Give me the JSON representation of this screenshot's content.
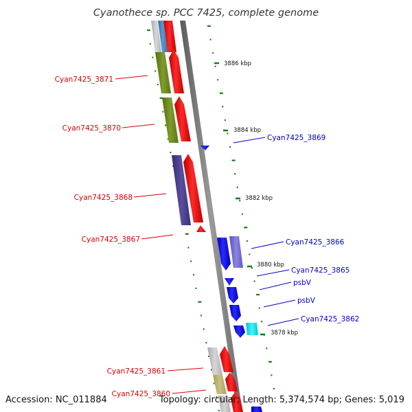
{
  "title": "Cyanothece sp. PCC 7425, complete genome",
  "footer": {
    "accession": "Accession: NC_011884",
    "summary": "Topology: circular; Length: 5,374,574 bp; Genes: 5,019"
  },
  "kbp_labels": [
    "3886 kbp",
    "3884 kbp",
    "3882 kbp",
    "3880 kbp",
    "3878 kbp"
  ],
  "left_genes": [
    "Cyan7425_3871",
    "Cyan7425_3870",
    "Cyan7425_3868",
    "Cyan7425_3867",
    "Cyan7425_3861",
    "Cyan7425_3860"
  ],
  "right_genes": [
    "Cyan7425_3869",
    "Cyan7425_3866",
    "Cyan7425_3865",
    "psbV",
    "psbV",
    "Cyan7425_3862"
  ],
  "colors": {
    "forward_cds": "#ff0000",
    "reverse_cds": "#0000ff",
    "left_label": "#d40000",
    "right_label": "#0000c8",
    "olive": "#6f8c1e",
    "indigo": "#4a3f8c",
    "cyan": "#00e5ee",
    "tick": "#1a7a1a"
  }
}
